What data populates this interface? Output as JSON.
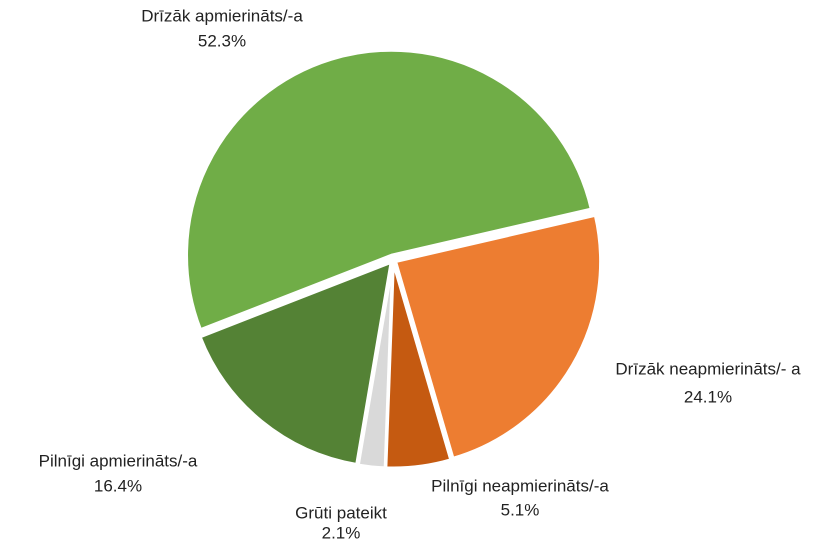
{
  "chart_data": {
    "type": "pie",
    "categories": [
      "Drīzāk apmierināts/-a",
      "Drīzāk neapmierināts/- a",
      "Pilnīgi neapmierināts/-a",
      "Grūti pateikt",
      "Pilnīgi apmierināts/-a"
    ],
    "values": [
      52.3,
      24.1,
      5.1,
      2.1,
      16.4
    ],
    "value_labels": [
      "52.3%",
      "24.1%",
      "5.1%",
      "2.1%",
      "16.4%"
    ],
    "colors": [
      "#70ad47",
      "#ed7d31",
      "#c55a11",
      "#d9d9d9",
      "#548235"
    ]
  }
}
